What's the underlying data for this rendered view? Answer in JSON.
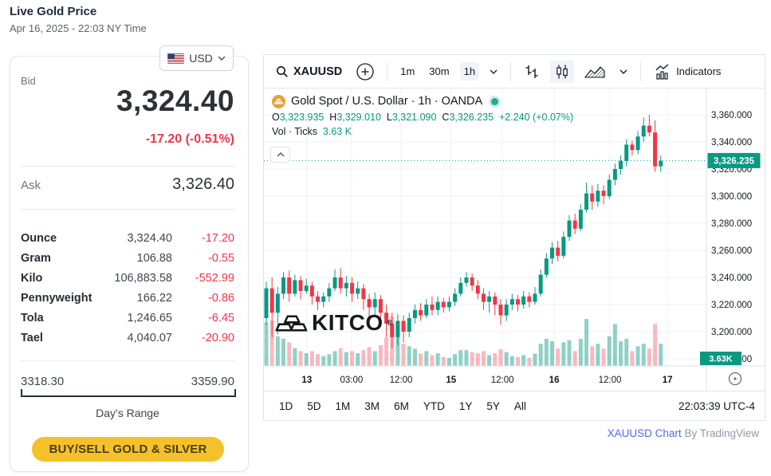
{
  "page": {
    "title": "Live Gold Price",
    "date": "Apr 16, 2025 - 22:03 NY Time"
  },
  "currency": {
    "selected": "USD"
  },
  "quote": {
    "bid_label": "Bid",
    "bid": "3,324.40",
    "change": "-17.20 (-0.51%)",
    "ask_label": "Ask",
    "ask": "3,326.40",
    "units": [
      {
        "label": "Ounce",
        "value": "3,324.40",
        "change": "-17.20"
      },
      {
        "label": "Gram",
        "value": "106.88",
        "change": "-0.55"
      },
      {
        "label": "Kilo",
        "value": "106,883.58",
        "change": "-552.99"
      },
      {
        "label": "Pennyweight",
        "value": "166.22",
        "change": "-0.86"
      },
      {
        "label": "Tola",
        "value": "1,246.65",
        "change": "-6.45"
      },
      {
        "label": "Tael",
        "value": "4,040.07",
        "change": "-20.90"
      }
    ],
    "range": {
      "low": "3318.30",
      "high": "3359.90",
      "label": "Day's Range"
    },
    "cta": "BUY/SELL GOLD & SILVER"
  },
  "chart": {
    "toolbar": {
      "symbol": "XAUUSD",
      "intervals": [
        "1m",
        "30m",
        "1h"
      ],
      "active_interval": "1h",
      "indicators_label": "Indicators"
    },
    "legend": {
      "title": "Gold Spot / U.S. Dollar · 1h · OANDA",
      "o_label": "O",
      "o": "3,323.935",
      "h_label": "H",
      "h": "3,329.010",
      "l_label": "L",
      "l": "3,321.090",
      "c_label": "C",
      "c": "3,326.235",
      "change": "+2.240 (+0.07%)",
      "vol_label": "Vol · Ticks",
      "vol": "3.63 K"
    },
    "watermark": "KITCO",
    "ranges": [
      "1D",
      "5D",
      "1M",
      "3M",
      "6M",
      "YTD",
      "1Y",
      "5Y",
      "All"
    ],
    "clock": "22:03:39 UTC-4",
    "attribution": {
      "link": "XAUUSD Chart",
      "rest": " By TradingView"
    }
  },
  "chart_data": {
    "type": "candlestick+volume",
    "symbol": "XAUUSD",
    "interval": "1h",
    "source": "OANDA",
    "current_price": 3326.235,
    "current_price_label": "3,326.235",
    "volume_badge": "3.63K",
    "colors": {
      "up": "#089981",
      "down": "#f23645",
      "vol_up": "rgba(8,153,129,0.45)",
      "vol_down": "rgba(242,54,69,0.35)",
      "price_line": "#089981",
      "badge": "#089981",
      "grid": "#eef1f6",
      "axis_text": "#131722"
    },
    "y_axis": {
      "price_top": 3379.4,
      "price_bottom": 3174.7,
      "ticks": [
        {
          "value": 3360,
          "label": "3,360.000"
        },
        {
          "value": 3340,
          "label": "3,340.000"
        },
        {
          "value": 3320,
          "label": "3,320.000"
        },
        {
          "value": 3300,
          "label": "3,300.000"
        },
        {
          "value": 3280,
          "label": "3,280.000"
        },
        {
          "value": 3260,
          "label": "3,260.000"
        },
        {
          "value": 3240,
          "label": "3,240.000"
        },
        {
          "value": 3220,
          "label": "3,220.000"
        },
        {
          "value": 3200,
          "label": "3,200.000"
        },
        {
          "value": 3180,
          "label": "3,180.000"
        }
      ]
    },
    "x_axis": {
      "labels": [
        {
          "text": "13",
          "major": true,
          "pos": 0.097
        },
        {
          "text": "03:00",
          "major": false,
          "pos": 0.198
        },
        {
          "text": "12:00",
          "major": false,
          "pos": 0.31
        },
        {
          "text": "15",
          "major": true,
          "pos": 0.423
        },
        {
          "text": "12:00",
          "major": false,
          "pos": 0.539
        },
        {
          "text": "16",
          "major": true,
          "pos": 0.656
        },
        {
          "text": "12:00",
          "major": false,
          "pos": 0.782
        },
        {
          "text": "17",
          "major": true,
          "pos": 0.912
        }
      ]
    },
    "candles": [
      [
        3210,
        3237,
        3205,
        3232,
        88
      ],
      [
        3232,
        3240,
        3196,
        3214,
        92
      ],
      [
        3214,
        3233,
        3198,
        3228,
        60
      ],
      [
        3228,
        3244,
        3224,
        3240,
        55
      ],
      [
        3240,
        3245,
        3222,
        3228,
        48
      ],
      [
        3228,
        3242,
        3226,
        3238,
        36
      ],
      [
        3238,
        3241,
        3224,
        3230,
        30
      ],
      [
        3230,
        3239,
        3228,
        3234,
        26
      ],
      [
        3234,
        3237,
        3220,
        3226,
        30
      ],
      [
        3226,
        3230,
        3216,
        3222,
        24
      ],
      [
        3222,
        3229,
        3218,
        3226,
        20
      ],
      [
        3226,
        3236,
        3222,
        3232,
        24
      ],
      [
        3232,
        3246,
        3230,
        3240,
        30
      ],
      [
        3240,
        3247,
        3228,
        3232,
        36
      ],
      [
        3232,
        3241,
        3226,
        3236,
        28
      ],
      [
        3236,
        3240,
        3222,
        3228,
        30
      ],
      [
        3228,
        3237,
        3224,
        3232,
        26
      ],
      [
        3232,
        3235,
        3216,
        3224,
        32
      ],
      [
        3224,
        3228,
        3208,
        3218,
        38
      ],
      [
        3218,
        3229,
        3212,
        3224,
        30
      ],
      [
        3224,
        3227,
        3204,
        3214,
        42
      ],
      [
        3214,
        3220,
        3196,
        3206,
        58
      ],
      [
        3206,
        3214,
        3188,
        3196,
        100
      ],
      [
        3196,
        3213,
        3190,
        3208,
        65
      ],
      [
        3208,
        3212,
        3192,
        3200,
        45
      ],
      [
        3200,
        3214,
        3196,
        3210,
        40
      ],
      [
        3210,
        3220,
        3206,
        3216,
        35
      ],
      [
        3216,
        3221,
        3208,
        3212,
        25
      ],
      [
        3212,
        3224,
        3210,
        3220,
        30
      ],
      [
        3220,
        3226,
        3212,
        3216,
        22
      ],
      [
        3216,
        3226,
        3212,
        3222,
        26
      ],
      [
        3222,
        3225,
        3214,
        3218,
        18
      ],
      [
        3218,
        3226,
        3215,
        3222,
        16
      ],
      [
        3222,
        3232,
        3219,
        3228,
        24
      ],
      [
        3228,
        3240,
        3226,
        3236,
        32
      ],
      [
        3236,
        3244,
        3233,
        3240,
        32
      ],
      [
        3240,
        3243,
        3230,
        3234,
        28
      ],
      [
        3234,
        3238,
        3224,
        3228,
        26
      ],
      [
        3228,
        3232,
        3216,
        3222,
        30
      ],
      [
        3222,
        3230,
        3214,
        3226,
        22
      ],
      [
        3226,
        3229,
        3212,
        3220,
        26
      ],
      [
        3220,
        3224,
        3205,
        3212,
        34
      ],
      [
        3212,
        3224,
        3208,
        3220,
        28
      ],
      [
        3220,
        3228,
        3216,
        3224,
        20
      ],
      [
        3224,
        3227,
        3215,
        3220,
        18
      ],
      [
        3220,
        3230,
        3217,
        3226,
        22
      ],
      [
        3226,
        3229,
        3218,
        3222,
        16
      ],
      [
        3222,
        3233,
        3220,
        3228,
        25
      ],
      [
        3228,
        3246,
        3226,
        3242,
        45
      ],
      [
        3242,
        3258,
        3240,
        3254,
        55
      ],
      [
        3254,
        3266,
        3250,
        3262,
        50
      ],
      [
        3262,
        3267,
        3252,
        3256,
        35
      ],
      [
        3256,
        3274,
        3254,
        3270,
        48
      ],
      [
        3270,
        3286,
        3267,
        3282,
        52
      ],
      [
        3282,
        3287,
        3272,
        3276,
        30
      ],
      [
        3276,
        3294,
        3274,
        3290,
        55
      ],
      [
        3290,
        3310,
        3288,
        3302,
        95
      ],
      [
        3302,
        3308,
        3290,
        3296,
        40
      ],
      [
        3296,
        3309,
        3292,
        3304,
        45
      ],
      [
        3304,
        3308,
        3294,
        3300,
        35
      ],
      [
        3300,
        3316,
        3298,
        3312,
        60
      ],
      [
        3312,
        3324,
        3308,
        3320,
        85
      ],
      [
        3320,
        3330,
        3316,
        3326,
        50
      ],
      [
        3326,
        3342,
        3322,
        3338,
        55
      ],
      [
        3338,
        3341,
        3330,
        3334,
        30
      ],
      [
        3334,
        3348,
        3331,
        3344,
        40
      ],
      [
        3344,
        3358,
        3340,
        3352,
        45
      ],
      [
        3352,
        3360,
        3344,
        3347,
        35
      ],
      [
        3347,
        3356,
        3318,
        3322,
        85
      ],
      [
        3322,
        3330,
        3318,
        3326,
        45
      ]
    ]
  }
}
